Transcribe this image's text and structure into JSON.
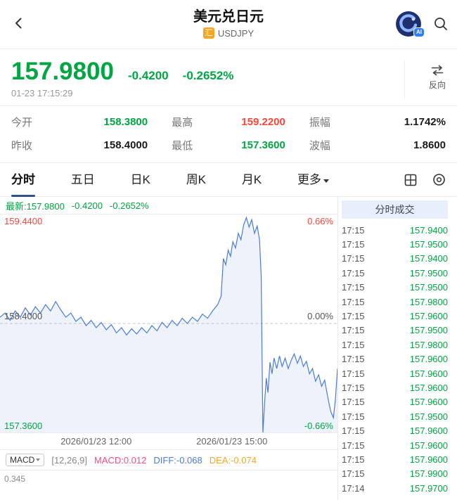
{
  "colors": {
    "green": "#00a642",
    "red": "#fd4438",
    "blue": "#4a7bdc",
    "navy": "#33508c",
    "badge-orange": "#f5a623",
    "panel-blue": "#e8effa",
    "macd-pink": "#fa4b87",
    "dea-orange": "#f5a623",
    "chart-line": "#4a7bdc",
    "border": "#ededed"
  },
  "header": {
    "title": "美元兑日元",
    "market_badge": "汇",
    "symbol": "USDJPY"
  },
  "price": {
    "last": "157.9800",
    "change": "-0.4200",
    "change_pct": "-0.2652%",
    "timestamp": "01-23 17:15:29",
    "reverse_label": "反向"
  },
  "stats": [
    {
      "label": "今开",
      "value": "158.3800",
      "tone": "green"
    },
    {
      "label": "最高",
      "value": "159.2200",
      "tone": "red"
    },
    {
      "label": "振幅",
      "value": "1.1742%",
      "tone": "dark"
    },
    {
      "label": "昨收",
      "value": "158.4000",
      "tone": "dark"
    },
    {
      "label": "最低",
      "value": "157.3600",
      "tone": "green"
    },
    {
      "label": "波幅",
      "value": "1.8600",
      "tone": "dark"
    }
  ],
  "tabs": [
    "分时",
    "五日",
    "日K",
    "周K",
    "月K",
    "更多"
  ],
  "chart": {
    "latest_label": "最新:157.9800",
    "latest_change": "-0.4200",
    "latest_pct": "-0.2652%",
    "y_top_left": "159.4400",
    "y_top_right": "0.66%",
    "y_mid_left": "158.4000",
    "y_mid_right": "0.00%",
    "y_bottom_left": "157.3600",
    "y_bottom_right": "-0.66%"
  },
  "chart_data": {
    "type": "line",
    "title": "USDJPY 分时走势",
    "ylim": [
      157.36,
      159.44
    ],
    "prev_close": 158.4,
    "grid": "dashed-midline",
    "legend": "none",
    "x_axis_labels": [
      "2026/01/23 12:00",
      "2026/01/23 15:00"
    ],
    "x_axis_label_positions": [
      0.285,
      0.687
    ],
    "y_axis_left_labels": [
      "159.4400",
      "158.4000",
      "157.3600"
    ],
    "y_axis_right_labels": [
      "0.66%",
      "0.00%",
      "-0.66%"
    ],
    "series": [
      {
        "name": "price",
        "points": [
          [
            0.0,
            158.46
          ],
          [
            0.015,
            158.5
          ],
          [
            0.03,
            158.43
          ],
          [
            0.045,
            158.52
          ],
          [
            0.06,
            158.46
          ],
          [
            0.075,
            158.55
          ],
          [
            0.09,
            158.48
          ],
          [
            0.105,
            158.56
          ],
          [
            0.12,
            158.5
          ],
          [
            0.135,
            158.58
          ],
          [
            0.15,
            158.52
          ],
          [
            0.165,
            158.61
          ],
          [
            0.18,
            158.53
          ],
          [
            0.195,
            158.46
          ],
          [
            0.21,
            158.5
          ],
          [
            0.225,
            158.42
          ],
          [
            0.24,
            158.46
          ],
          [
            0.255,
            158.38
          ],
          [
            0.27,
            158.43
          ],
          [
            0.285,
            158.36
          ],
          [
            0.3,
            158.41
          ],
          [
            0.315,
            158.34
          ],
          [
            0.33,
            158.39
          ],
          [
            0.345,
            158.31
          ],
          [
            0.36,
            158.36
          ],
          [
            0.375,
            158.29
          ],
          [
            0.39,
            158.35
          ],
          [
            0.405,
            158.3
          ],
          [
            0.42,
            158.36
          ],
          [
            0.435,
            158.31
          ],
          [
            0.45,
            158.38
          ],
          [
            0.465,
            158.33
          ],
          [
            0.48,
            158.41
          ],
          [
            0.495,
            158.36
          ],
          [
            0.51,
            158.43
          ],
          [
            0.525,
            158.38
          ],
          [
            0.54,
            158.45
          ],
          [
            0.555,
            158.4
          ],
          [
            0.57,
            158.46
          ],
          [
            0.585,
            158.42
          ],
          [
            0.6,
            158.49
          ],
          [
            0.615,
            158.45
          ],
          [
            0.63,
            158.52
          ],
          [
            0.645,
            158.58
          ],
          [
            0.655,
            158.66
          ],
          [
            0.662,
            159.02
          ],
          [
            0.669,
            158.96
          ],
          [
            0.676,
            159.1
          ],
          [
            0.683,
            159.04
          ],
          [
            0.69,
            159.18
          ],
          [
            0.698,
            159.12
          ],
          [
            0.706,
            159.26
          ],
          [
            0.714,
            159.2
          ],
          [
            0.722,
            159.34
          ],
          [
            0.73,
            159.41
          ],
          [
            0.738,
            159.32
          ],
          [
            0.746,
            159.39
          ],
          [
            0.754,
            159.26
          ],
          [
            0.762,
            159.33
          ],
          [
            0.769,
            159.2
          ],
          [
            0.774,
            158.85
          ],
          [
            0.779,
            157.36
          ],
          [
            0.784,
            157.64
          ],
          [
            0.789,
            157.88
          ],
          [
            0.794,
            157.74
          ],
          [
            0.8,
            158.03
          ],
          [
            0.806,
            157.92
          ],
          [
            0.812,
            158.07
          ],
          [
            0.82,
            157.97
          ],
          [
            0.828,
            158.09
          ],
          [
            0.836,
            157.99
          ],
          [
            0.845,
            158.07
          ],
          [
            0.854,
            157.97
          ],
          [
            0.863,
            158.05
          ],
          [
            0.872,
            158.11
          ],
          [
            0.881,
            158.02
          ],
          [
            0.89,
            158.09
          ],
          [
            0.899,
            157.99
          ],
          [
            0.908,
            158.04
          ],
          [
            0.917,
            157.92
          ],
          [
            0.926,
            157.97
          ],
          [
            0.935,
            157.85
          ],
          [
            0.944,
            157.91
          ],
          [
            0.953,
            157.8
          ],
          [
            0.962,
            157.86
          ],
          [
            0.971,
            157.7
          ],
          [
            0.98,
            157.56
          ],
          [
            0.988,
            157.5
          ],
          [
            0.994,
            157.68
          ],
          [
            1.0,
            157.97
          ]
        ]
      }
    ]
  },
  "trades": {
    "header": "分时成交",
    "rows": [
      {
        "time": "17:15",
        "price": "157.9400"
      },
      {
        "time": "17:15",
        "price": "157.9500"
      },
      {
        "time": "17:15",
        "price": "157.9400"
      },
      {
        "time": "17:15",
        "price": "157.9500"
      },
      {
        "time": "17:15",
        "price": "157.9500"
      },
      {
        "time": "17:15",
        "price": "157.9800"
      },
      {
        "time": "17:15",
        "price": "157.9600"
      },
      {
        "time": "17:15",
        "price": "157.9500"
      },
      {
        "time": "17:15",
        "price": "157.9800"
      },
      {
        "time": "17:15",
        "price": "157.9600"
      },
      {
        "time": "17:15",
        "price": "157.9600"
      },
      {
        "time": "17:15",
        "price": "157.9600"
      },
      {
        "time": "17:15",
        "price": "157.9600"
      },
      {
        "time": "17:15",
        "price": "157.9500"
      },
      {
        "time": "17:15",
        "price": "157.9600"
      },
      {
        "time": "17:15",
        "price": "157.9600"
      },
      {
        "time": "17:15",
        "price": "157.9600"
      },
      {
        "time": "17:15",
        "price": "157.9900"
      },
      {
        "time": "17:14",
        "price": "157.9700"
      }
    ]
  },
  "macd": {
    "selector": "MACD",
    "params": "[12,26,9]",
    "macd_value": "MACD:0.012",
    "diff_value": "DIFF:-0.068",
    "dea_value": "DEA:-0.074",
    "scale_top": "0.345"
  }
}
